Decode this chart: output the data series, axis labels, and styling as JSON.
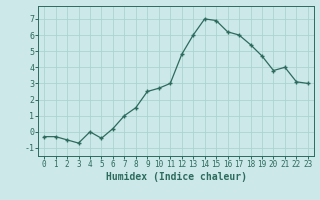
{
  "x": [
    0,
    1,
    2,
    3,
    4,
    5,
    6,
    7,
    8,
    9,
    10,
    11,
    12,
    13,
    14,
    15,
    16,
    17,
    18,
    19,
    20,
    21,
    22,
    23
  ],
  "y": [
    -0.3,
    -0.3,
    -0.5,
    -0.7,
    0.0,
    -0.4,
    0.2,
    1.0,
    1.5,
    2.5,
    2.7,
    3.0,
    4.8,
    6.0,
    7.0,
    6.9,
    6.2,
    6.0,
    5.4,
    4.7,
    3.8,
    4.0,
    3.1,
    3.0
  ],
  "xlabel": "Humidex (Indice chaleur)",
  "line_color": "#2d6b5e",
  "marker": "+",
  "bg_color": "#cce8e8",
  "grid_color": "#aad4d0",
  "ylim": [
    -1.5,
    7.8
  ],
  "xlim": [
    -0.5,
    23.5
  ],
  "yticks": [
    -1,
    0,
    1,
    2,
    3,
    4,
    5,
    6,
    7
  ],
  "xticks": [
    0,
    1,
    2,
    3,
    4,
    5,
    6,
    7,
    8,
    9,
    10,
    11,
    12,
    13,
    14,
    15,
    16,
    17,
    18,
    19,
    20,
    21,
    22,
    23
  ],
  "tick_fontsize": 5.5,
  "xlabel_fontsize": 7.0
}
